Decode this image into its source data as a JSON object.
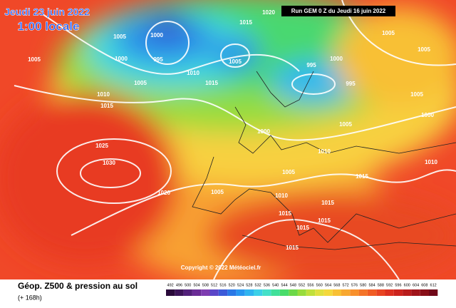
{
  "header": {
    "date": "Jeudi 23 juin 2022",
    "time": "1:00 locale",
    "run": "Run GEM 0 Z du Jeudi 16 juin 2022"
  },
  "copyright": "Copyright © 2022 Météociel.fr",
  "footer": {
    "title": "Géop. Z500 & pression au sol",
    "lead": "(+ 168h)"
  },
  "colorbar": {
    "ticks": [
      492,
      496,
      500,
      504,
      508,
      512,
      516,
      520,
      524,
      528,
      532,
      536,
      540,
      544,
      548,
      552,
      556,
      560,
      564,
      568,
      572,
      576,
      580,
      584,
      588,
      592,
      596,
      600,
      604,
      608,
      612
    ],
    "colors": [
      "#2a0a3a",
      "#3c1458",
      "#52207a",
      "#6a2c96",
      "#7e3cb0",
      "#5a46c8",
      "#3c5ad8",
      "#2a78e6",
      "#2896f0",
      "#30b4f0",
      "#3cd0e8",
      "#44e0c8",
      "#40e09a",
      "#48dc6a",
      "#6cd848",
      "#98dc3c",
      "#c0e03c",
      "#e0e040",
      "#f4d83c",
      "#f8c034",
      "#f8a830",
      "#f8902c",
      "#f47428",
      "#f05c24",
      "#e84422",
      "#dc3020",
      "#cc241e",
      "#b81c1c",
      "#a0141a",
      "#880e18",
      "#700818"
    ]
  },
  "isobar_labels": [
    1020,
    1015,
    1005,
    1000,
    1005,
    1000,
    995,
    1005,
    1010,
    1005,
    1015,
    1005,
    1005,
    1000,
    995,
    995,
    1005,
    1000,
    1010,
    1015,
    1000,
    1005,
    1025,
    1030,
    1010,
    1010,
    1005,
    1015,
    1020,
    1005,
    1010,
    1015,
    1015,
    1015,
    1015,
    1015
  ]
}
